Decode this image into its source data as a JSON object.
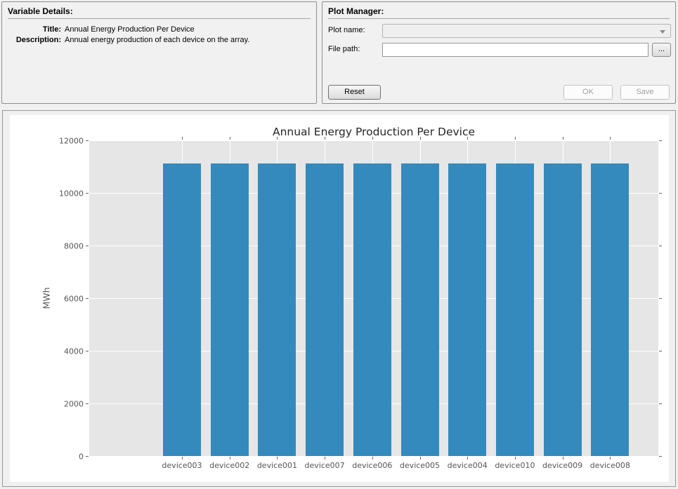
{
  "variable_details": {
    "heading": "Variable Details:",
    "title_label": "Title:",
    "title_value": "Annual Energy Production Per Device",
    "description_label": "Description:",
    "description_value": "Annual energy production of each device on the array."
  },
  "plot_manager": {
    "heading": "Plot Manager:",
    "plot_name_label": "Plot name:",
    "plot_name_value": "",
    "file_path_label": "File path:",
    "file_path_value": "",
    "browse_button_label": "...",
    "reset_button_label": "Reset",
    "ok_button_label": "OK",
    "save_button_label": "Save"
  },
  "chart_data": {
    "type": "bar",
    "title": "Annual Energy Production Per Device",
    "xlabel": "",
    "ylabel": "MWh",
    "categories": [
      "device003",
      "device002",
      "device001",
      "device007",
      "device006",
      "device005",
      "device004",
      "device010",
      "device009",
      "device008"
    ],
    "values": [
      11120,
      11120,
      11120,
      11120,
      11120,
      11120,
      11120,
      11120,
      11120,
      11120
    ],
    "ylim": [
      0,
      12000
    ],
    "yticks": [
      0,
      2000,
      4000,
      6000,
      8000,
      10000,
      12000
    ],
    "grid": "both",
    "legend": "none",
    "bar_color": "#348abd",
    "plot_bg_color": "#e6e6e6",
    "grid_color": "#ffffff",
    "tick_color": "#666666",
    "tick_label_color": "#555555"
  }
}
